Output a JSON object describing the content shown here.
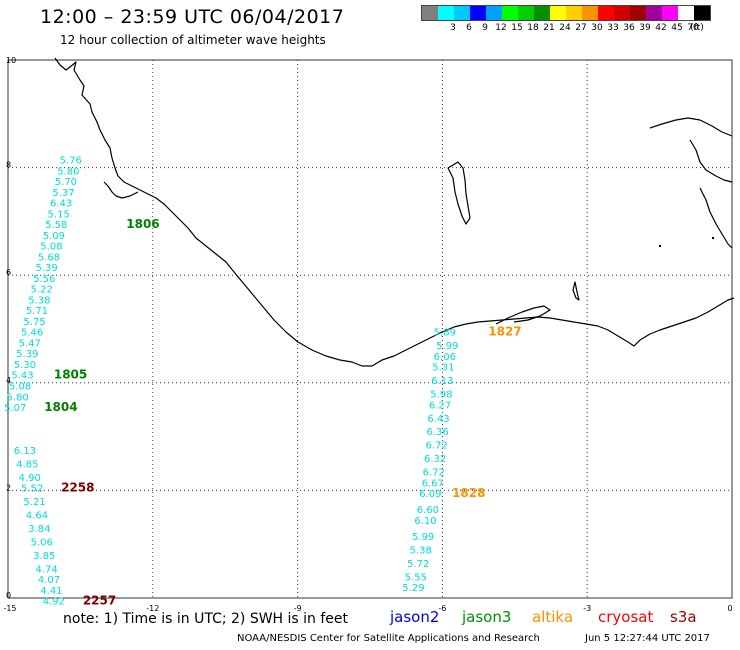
{
  "header": {
    "title": "12:00 – 23:59 UTC 06/04/2017",
    "subtitle": "12 hour collection of altimeter wave heights"
  },
  "legend": {
    "unit": "(ft)",
    "colors": [
      "#808080",
      "#00ffff",
      "#00c8ff",
      "#0000ff",
      "#00a0ff",
      "#00ff00",
      "#00d000",
      "#009000",
      "#ffff00",
      "#ffd000",
      "#ff9000",
      "#ff0000",
      "#d00000",
      "#a00000",
      "#a000a0",
      "#ff00ff",
      "#ffffff",
      "#000000"
    ],
    "ticks": [
      "3",
      "6",
      "9",
      "12",
      "15",
      "18",
      "21",
      "24",
      "27",
      "30",
      "33",
      "36",
      "39",
      "42",
      "45",
      "70"
    ]
  },
  "axes": {
    "lon_ticks": [
      -15,
      -12,
      -9,
      -6,
      -3,
      0
    ],
    "lat_ticks": [
      0,
      2,
      4,
      6,
      8,
      10
    ],
    "lon_labels": [
      "-15",
      "-12",
      "-9",
      "-6",
      "-3",
      "0"
    ],
    "lat_labels": [
      "0",
      "2",
      "4",
      "6",
      "8",
      "10"
    ]
  },
  "tracks": [
    {
      "name": "west-track",
      "points": [
        {
          "lon": -13.7,
          "lat": 8.15,
          "swh": "5.76"
        },
        {
          "lon": -13.75,
          "lat": 7.95,
          "swh": "5.80"
        },
        {
          "lon": -13.8,
          "lat": 7.75,
          "swh": "5.70"
        },
        {
          "lon": -13.85,
          "lat": 7.55,
          "swh": "5.37"
        },
        {
          "lon": -13.9,
          "lat": 7.35,
          "swh": "6.43"
        },
        {
          "lon": -13.95,
          "lat": 7.15,
          "swh": "5.15"
        },
        {
          "lon": -14.0,
          "lat": 6.95,
          "swh": "5.58"
        },
        {
          "lon": -14.05,
          "lat": 6.75,
          "swh": "5.09"
        },
        {
          "lon": -14.1,
          "lat": 6.55,
          "swh": "5.08"
        },
        {
          "lon": -14.15,
          "lat": 6.35,
          "swh": "5.68"
        },
        {
          "lon": -14.2,
          "lat": 6.15,
          "swh": "5.39"
        },
        {
          "lon": -14.25,
          "lat": 5.95,
          "swh": "5.56"
        },
        {
          "lon": -14.3,
          "lat": 5.75,
          "swh": "5.22"
        },
        {
          "lon": -14.35,
          "lat": 5.55,
          "swh": "5.38"
        },
        {
          "lon": -14.4,
          "lat": 5.35,
          "swh": "5.71"
        },
        {
          "lon": -14.45,
          "lat": 5.15,
          "swh": "5.75"
        },
        {
          "lon": -14.5,
          "lat": 4.95,
          "swh": "5.46"
        },
        {
          "lon": -14.55,
          "lat": 4.75,
          "swh": "5.47"
        },
        {
          "lon": -14.6,
          "lat": 4.55,
          "swh": "5.39"
        },
        {
          "lon": -14.65,
          "lat": 4.35,
          "swh": "5.30"
        },
        {
          "lon": -14.7,
          "lat": 4.15,
          "swh": "5.43"
        },
        {
          "lon": -14.75,
          "lat": 3.95,
          "swh": "5.08"
        },
        {
          "lon": -14.8,
          "lat": 3.75,
          "swh": "5.80"
        },
        {
          "lon": -14.85,
          "lat": 3.55,
          "swh": "5.07"
        }
      ],
      "time_labels": [
        {
          "lon": -12.55,
          "lat": 6.95,
          "text": "1806",
          "color": "#008000"
        },
        {
          "lon": -14.05,
          "lat": 4.15,
          "text": "1805",
          "color": "#008000"
        },
        {
          "lon": -14.25,
          "lat": 3.55,
          "text": "1804",
          "color": "#008000"
        }
      ]
    },
    {
      "name": "southwest-track",
      "points": [
        {
          "lon": -14.65,
          "lat": 2.75,
          "swh": "6.13"
        },
        {
          "lon": -14.6,
          "lat": 2.5,
          "swh": "4.85"
        },
        {
          "lon": -14.55,
          "lat": 2.25,
          "swh": "4.90"
        },
        {
          "lon": -14.5,
          "lat": 2.05,
          "swh": "5.52"
        },
        {
          "lon": -14.45,
          "lat": 1.8,
          "swh": "5.21"
        },
        {
          "lon": -14.4,
          "lat": 1.55,
          "swh": "4.64"
        },
        {
          "lon": -14.35,
          "lat": 1.3,
          "swh": "3.84"
        },
        {
          "lon": -14.3,
          "lat": 1.05,
          "swh": "5.06"
        },
        {
          "lon": -14.25,
          "lat": 0.8,
          "swh": "3.85"
        },
        {
          "lon": -14.2,
          "lat": 0.55,
          "swh": "4.74"
        },
        {
          "lon": -14.15,
          "lat": 0.35,
          "swh": "4.07"
        },
        {
          "lon": -14.1,
          "lat": 0.15,
          "swh": "4.41"
        },
        {
          "lon": -14.05,
          "lat": -0.05,
          "swh": "4.92"
        }
      ],
      "time_labels": [
        {
          "lon": -13.9,
          "lat": 2.05,
          "text": "2258",
          "color": "#800000"
        },
        {
          "lon": -13.45,
          "lat": -0.05,
          "text": "2257",
          "color": "#800000"
        }
      ]
    },
    {
      "name": "east-track",
      "points": [
        {
          "lon": -5.95,
          "lat": 4.95,
          "swh": "5.89"
        },
        {
          "lon": -5.9,
          "lat": 4.7,
          "swh": "5.99"
        },
        {
          "lon": -5.95,
          "lat": 4.5,
          "swh": "6.06"
        },
        {
          "lon": -5.98,
          "lat": 4.3,
          "swh": "5.31"
        },
        {
          "lon": -6.0,
          "lat": 4.05,
          "swh": "6.13"
        },
        {
          "lon": -6.02,
          "lat": 3.8,
          "swh": "5.98"
        },
        {
          "lon": -6.05,
          "lat": 3.6,
          "swh": "6.27"
        },
        {
          "lon": -6.08,
          "lat": 3.35,
          "swh": "6.43"
        },
        {
          "lon": -6.1,
          "lat": 3.1,
          "swh": "6.36"
        },
        {
          "lon": -6.12,
          "lat": 2.85,
          "swh": "6.72"
        },
        {
          "lon": -6.15,
          "lat": 2.6,
          "swh": "6.32"
        },
        {
          "lon": -6.18,
          "lat": 2.35,
          "swh": "6.72"
        },
        {
          "lon": -6.2,
          "lat": 2.15,
          "swh": "6.67"
        },
        {
          "lon": -6.25,
          "lat": 1.95,
          "swh": "6.09"
        },
        {
          "lon": -6.3,
          "lat": 1.65,
          "swh": "6.60"
        },
        {
          "lon": -6.35,
          "lat": 1.45,
          "swh": "6.10"
        },
        {
          "lon": -6.4,
          "lat": 1.15,
          "swh": "5.99"
        },
        {
          "lon": -6.45,
          "lat": 0.9,
          "swh": "5.38"
        },
        {
          "lon": -6.5,
          "lat": 0.65,
          "swh": "5.72"
        },
        {
          "lon": -6.55,
          "lat": 0.4,
          "swh": "5.55"
        },
        {
          "lon": -6.6,
          "lat": 0.2,
          "swh": "5.29"
        }
      ],
      "time_labels": [
        {
          "lon": -5.05,
          "lat": 4.95,
          "text": "1827",
          "color": "#ff9000"
        },
        {
          "lon": -5.8,
          "lat": 1.95,
          "text": "1828",
          "color": "#ff9000"
        }
      ]
    }
  ],
  "footer": {
    "note": "note:  1) Time is in UTC;  2) SWH is in feet",
    "missions": [
      {
        "name": "jason2",
        "color": "#0000dd"
      },
      {
        "name": "jason3",
        "color": "#009000"
      },
      {
        "name": "altika",
        "color": "#ff9000"
      },
      {
        "name": "cryosat",
        "color": "#ff0000"
      },
      {
        "name": "s3a",
        "color": "#a00000"
      }
    ],
    "credit": "NOAA/NESDIS Center for Satellite Applications and Research",
    "timestamp": "Jun  5 12:27:44 UTC 2017"
  },
  "map": {
    "track_color": "#00dddd",
    "coast_color": "#000000",
    "grid_color": "#333333"
  }
}
